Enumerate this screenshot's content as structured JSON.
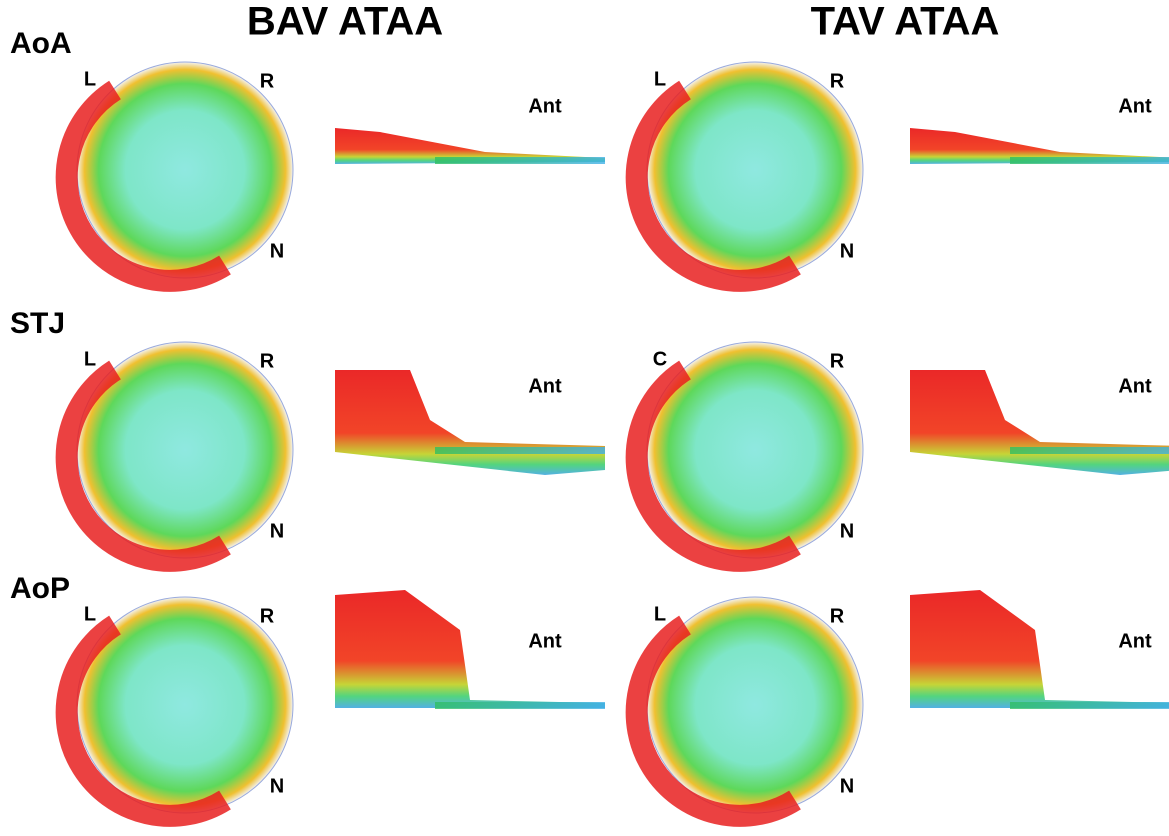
{
  "columns": [
    "BAV ATAA",
    "TAV ATAA"
  ],
  "rows": [
    {
      "label": "AoA",
      "panels": [
        {
          "markers": [
            "L",
            "R",
            "N"
          ],
          "side": "Ant"
        },
        {
          "markers": [
            "L",
            "R",
            "N"
          ],
          "side": "Ant"
        }
      ]
    },
    {
      "label": "STJ",
      "panels": [
        {
          "markers": [
            "L",
            "R",
            "N"
          ],
          "side": "Ant"
        },
        {
          "markers": [
            "C",
            "R",
            "N"
          ],
          "side": "Ant"
        }
      ]
    },
    {
      "label": "AoP",
      "panels": [
        {
          "markers": [
            "L",
            "R",
            "N"
          ],
          "side": "Ant"
        },
        {
          "markers": [
            "L",
            "R",
            "N"
          ],
          "side": "Ant"
        }
      ]
    }
  ]
}
